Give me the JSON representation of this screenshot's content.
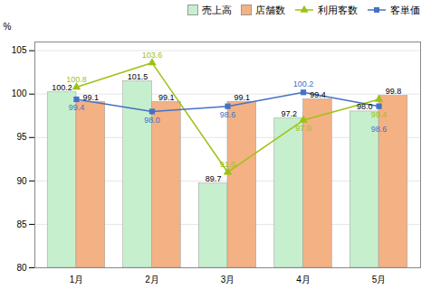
{
  "chart_data": {
    "type": "bar",
    "ylabel": "%",
    "categories": [
      "1月",
      "2月",
      "3月",
      "4月",
      "5月"
    ],
    "series": [
      {
        "name": "売上高",
        "type": "bar",
        "color": "#c6efce",
        "values": [
          100.2,
          101.5,
          89.7,
          97.2,
          98.0
        ],
        "value_labels": [
          "100.2",
          "101.5",
          "89.7",
          "97.2",
          "98.0"
        ]
      },
      {
        "name": "店舗数",
        "type": "bar",
        "color": "#f4b183",
        "values": [
          99.1,
          99.1,
          99.1,
          99.4,
          99.8
        ],
        "value_labels": [
          "99.1",
          "99.1",
          "99.1",
          "99.4",
          "99.8"
        ]
      },
      {
        "name": "利用客数",
        "type": "line",
        "color": "#9dc214",
        "marker": "triangle",
        "values": [
          100.8,
          103.6,
          91.0,
          97.0,
          99.4
        ],
        "value_labels": [
          "100.8",
          "103.6",
          "91.0",
          "97.0",
          "99.4"
        ]
      },
      {
        "name": "客単価",
        "type": "line",
        "color": "#4472c4",
        "marker": "square",
        "values": [
          99.4,
          98.0,
          98.6,
          100.2,
          98.6
        ],
        "value_labels": [
          "99.4",
          "98.0",
          "98.6",
          "100.2",
          "98.6"
        ]
      }
    ],
    "ylim": [
      80,
      106
    ],
    "yticks": [
      80,
      85,
      90,
      95,
      100,
      105
    ],
    "grid": true,
    "legend": "upper right",
    "data_labels": true
  }
}
